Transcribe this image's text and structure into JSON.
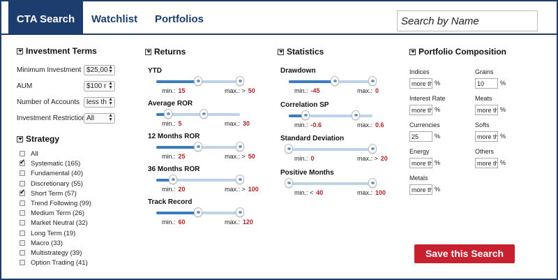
{
  "tabs": [
    {
      "label": "CTA Search",
      "active": true
    },
    {
      "label": "Watchlist"
    },
    {
      "label": "Portfolios"
    }
  ],
  "search": {
    "placeholder": "Search by Name"
  },
  "investment_terms": {
    "title": "Investment Terms",
    "fields": [
      {
        "label": "Minimum Investment",
        "value": "$25,00"
      },
      {
        "label": "AUM",
        "value": "$100 r"
      },
      {
        "label": "Number of Accounts",
        "value": "less th"
      },
      {
        "label": "Investment Restriction",
        "value": "All"
      }
    ]
  },
  "strategy": {
    "title": "Strategy",
    "items": [
      {
        "label": "All",
        "checked": false
      },
      {
        "label": "Systematic (165)",
        "checked": true
      },
      {
        "label": "Fundamental (40)",
        "checked": false
      },
      {
        "label": "Discretionary (55)",
        "checked": false
      },
      {
        "label": "Short Term (57)",
        "checked": true
      },
      {
        "label": "Trend Following (99)",
        "checked": false
      },
      {
        "label": "Medium Term (26)",
        "checked": false
      },
      {
        "label": "Market Neutral (32)",
        "checked": false
      },
      {
        "label": "Long Term (19)",
        "checked": false
      },
      {
        "label": "Macro (33)",
        "checked": false
      },
      {
        "label": "Multistrategy (39)",
        "checked": false
      },
      {
        "label": "Option Trading (41)",
        "checked": false
      }
    ]
  },
  "returns": {
    "title": "Returns",
    "sliders": [
      {
        "label": "YTD",
        "min_label": "min.:",
        "min": "15",
        "max_label": "max.: >",
        "max": "50",
        "lo": 0.5,
        "hi": 1.0
      },
      {
        "label": "Average ROR",
        "min_label": "min.:",
        "min": "5",
        "max_label": "max.:",
        "max": "30",
        "lo": 0.14,
        "hi": 0.57
      },
      {
        "label": "12 Months ROR",
        "min_label": "min.:",
        "min": "25",
        "max_label": "max.: >",
        "max": "50",
        "lo": 0.5,
        "hi": 1.0
      },
      {
        "label": "36 Months ROR",
        "min_label": "min.:",
        "min": "20",
        "max_label": "max.: >",
        "max": "100",
        "lo": 0.2,
        "hi": 1.0
      },
      {
        "label": "Track Record",
        "min_label": "min.:",
        "min": "60",
        "max_label": "max.:",
        "max": "120",
        "lo": 0.5,
        "hi": 1.0
      }
    ]
  },
  "statistics": {
    "title": "Statistics",
    "sliders": [
      {
        "label": "Drawdown",
        "min_label": "min.:",
        "min": "-45",
        "max_label": "max.:",
        "max": "0",
        "lo": 0.55,
        "hi": 1.0
      },
      {
        "label": "Correlation SP",
        "min_label": "min.:",
        "min": "-0.6",
        "max_label": "max.:",
        "max": "0.6",
        "lo": 0.2,
        "hi": 0.8
      },
      {
        "label": "Standard Deviation",
        "min_label": "min.:",
        "min": "0",
        "max_label": "max.: >",
        "max": "20",
        "lo": 0.0,
        "hi": 1.0
      },
      {
        "label": "Positive Months",
        "min_label": "min.: <",
        "min": "40",
        "max_label": "max.:",
        "max": "100",
        "lo": 0.0,
        "hi": 1.0
      }
    ]
  },
  "portfolio": {
    "title": "Portfolio Composition",
    "left": [
      {
        "label": "Indices",
        "value": "more th"
      },
      {
        "label": "Interest Rate",
        "value": "more th"
      },
      {
        "label": "Currencies",
        "value": "25"
      },
      {
        "label": "Energy",
        "value": "more th"
      },
      {
        "label": "Metals",
        "value": "more th"
      }
    ],
    "right": [
      {
        "label": "Grains",
        "value": "10"
      },
      {
        "label": "Meats",
        "value": "more th"
      },
      {
        "label": "Softs",
        "value": "more th"
      },
      {
        "label": "Others",
        "value": "more th"
      }
    ],
    "unit": "%"
  },
  "save_label": "Save this Search",
  "colors": {
    "brand": "#1d3d6e",
    "accent": "#c8202f",
    "slider_fill": "#3a7cc0",
    "value_red": "#b32024"
  }
}
